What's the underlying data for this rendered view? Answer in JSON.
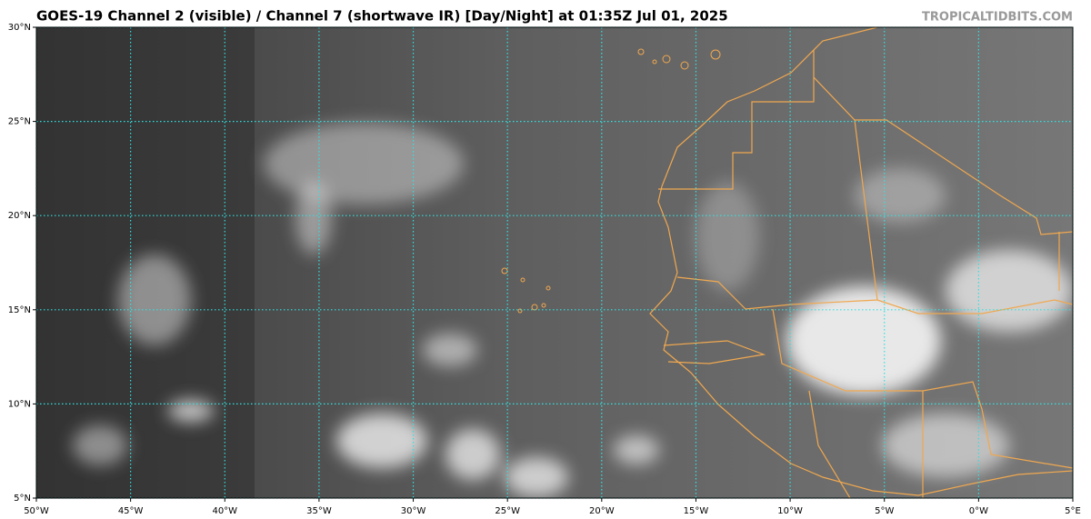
{
  "map": {
    "title": "GOES-19 Channel 2 (visible) / Channel 7 (shortwave IR) [Day/Night] at 01:35Z Jul 01, 2025",
    "credit": "TROPICALTIDBITS.COM",
    "xlim": [
      -50,
      5
    ],
    "ylim": [
      5,
      30
    ],
    "xticks": [
      {
        "value": -50,
        "label": "50°W"
      },
      {
        "value": -45,
        "label": "45°W"
      },
      {
        "value": -40,
        "label": "40°W"
      },
      {
        "value": -35,
        "label": "35°W"
      },
      {
        "value": -30,
        "label": "30°W"
      },
      {
        "value": -25,
        "label": "25°W"
      },
      {
        "value": -20,
        "label": "20°W"
      },
      {
        "value": -15,
        "label": "15°W"
      },
      {
        "value": -10,
        "label": "10°W"
      },
      {
        "value": -5,
        "label": "5°W"
      },
      {
        "value": 0,
        "label": "0°W"
      },
      {
        "value": 5,
        "label": "5°E"
      }
    ],
    "yticks": [
      {
        "value": 5,
        "label": "5°N"
      },
      {
        "value": 10,
        "label": "10°N"
      },
      {
        "value": 15,
        "label": "15°N"
      },
      {
        "value": 20,
        "label": "20°N"
      },
      {
        "value": 25,
        "label": "25°N"
      },
      {
        "value": 30,
        "label": "30°N"
      }
    ],
    "grid": true,
    "grid_color": "#33e0e0"
  }
}
